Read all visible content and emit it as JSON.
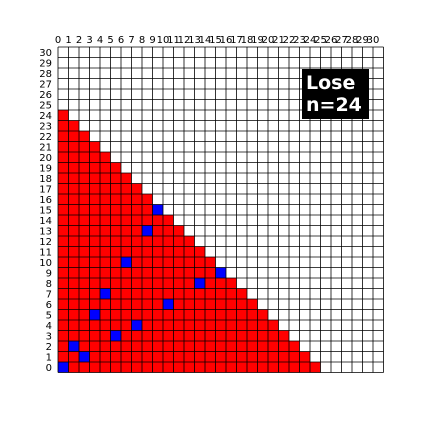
{
  "game": {
    "grid_size": 31,
    "staircase_top_row": 24,
    "status_line1": "Lose",
    "status_line2": "n=24",
    "colors": {
      "empty": "#ffffff",
      "filled": "#ff0000",
      "marked": "#0000ff",
      "grid_line": "#000000",
      "status_bg": "#000000",
      "status_text": "#ffffff"
    },
    "x_labels": [
      "0",
      "1",
      "2",
      "3",
      "4",
      "5",
      "6",
      "7",
      "8",
      "9",
      "10",
      "11",
      "12",
      "13",
      "14",
      "15",
      "16",
      "17",
      "18",
      "19",
      "20",
      "21",
      "22",
      "23",
      "24",
      "25",
      "26",
      "27",
      "28",
      "29",
      "30"
    ],
    "y_labels": [
      "0",
      "1",
      "2",
      "3",
      "4",
      "5",
      "6",
      "7",
      "8",
      "9",
      "10",
      "11",
      "12",
      "13",
      "14",
      "15",
      "16",
      "17",
      "18",
      "19",
      "20",
      "21",
      "22",
      "23",
      "24",
      "25",
      "26",
      "27",
      "28",
      "29",
      "30"
    ],
    "blue_cells": [
      [
        0,
        0
      ],
      [
        1,
        2
      ],
      [
        2,
        1
      ],
      [
        3,
        5
      ],
      [
        4,
        7
      ],
      [
        5,
        3
      ],
      [
        6,
        10
      ],
      [
        7,
        4
      ],
      [
        8,
        13
      ],
      [
        9,
        15
      ],
      [
        10,
        6
      ],
      [
        13,
        8
      ],
      [
        15,
        9
      ]
    ]
  }
}
